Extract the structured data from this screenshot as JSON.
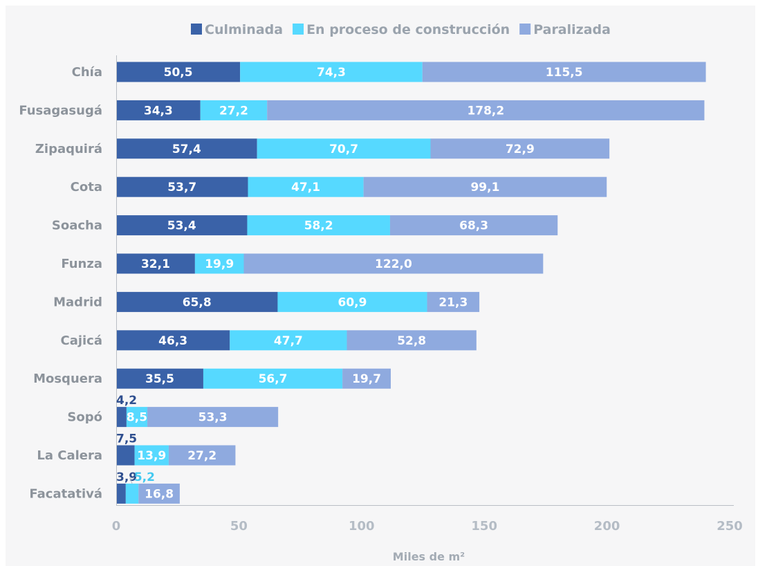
{
  "chart_data": {
    "type": "bar",
    "orientation": "horizontal",
    "stacked": true,
    "categories": [
      "Chía",
      "Fusagasugá",
      "Zipaquirá",
      "Cota",
      "Soacha",
      "Funza",
      "Madrid",
      "Cajicá",
      "Mosquera",
      "Sopó",
      "La Calera",
      "Facatativá"
    ],
    "series": [
      {
        "name": "Culminada",
        "color": "#3a62a8",
        "values": [
          50.5,
          34.3,
          57.4,
          53.7,
          53.4,
          32.1,
          65.8,
          46.3,
          35.5,
          4.2,
          7.5,
          3.9
        ],
        "labels": [
          "50,5",
          "34,3",
          "57,4",
          "53,7",
          "53,4",
          "32,1",
          "65,8",
          "46,3",
          "35,5",
          "4,2",
          "7,5",
          "3,9"
        ]
      },
      {
        "name": "En proceso de construcción",
        "color": "#56d9ff",
        "values": [
          74.3,
          27.2,
          70.7,
          47.1,
          58.2,
          19.9,
          60.9,
          47.7,
          56.7,
          8.5,
          13.9,
          5.2
        ],
        "labels": [
          "74,3",
          "27,2",
          "70,7",
          "47,1",
          "58,2",
          "19,9",
          "60,9",
          "47,7",
          "56,7",
          "8,5",
          "13,9",
          "5,2"
        ]
      },
      {
        "name": "Paralizada",
        "color": "#8faadf",
        "values": [
          115.5,
          178.2,
          72.9,
          99.1,
          68.3,
          122.0,
          21.3,
          52.8,
          19.7,
          53.3,
          27.2,
          16.8
        ],
        "labels": [
          "115,5",
          "178,2",
          "72,9",
          "99,1",
          "68,3",
          "122,0",
          "21,3",
          "52,8",
          "19,7",
          "53,3",
          "27,2",
          "16,8"
        ]
      }
    ],
    "xlabel": "Miles de m²",
    "ylabel": "",
    "xlim": [
      0,
      250
    ],
    "xticks": [
      "0",
      "50",
      "100",
      "150",
      "200",
      "250"
    ],
    "grid": false,
    "legend_position": "top"
  }
}
